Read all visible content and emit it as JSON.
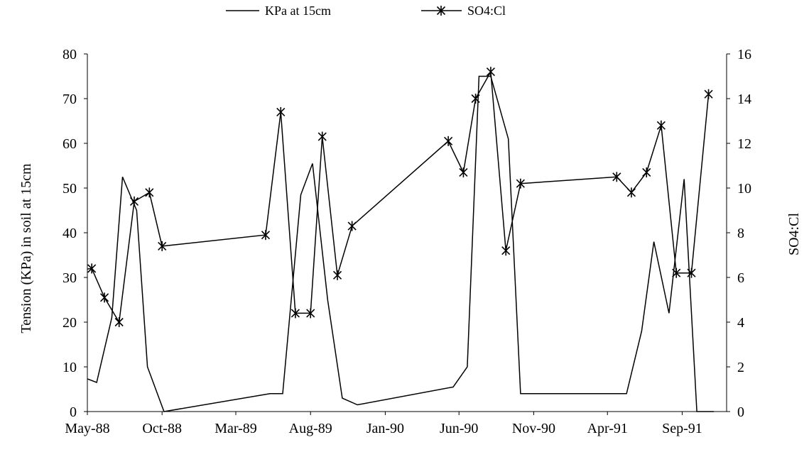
{
  "chart_data": {
    "type": "line",
    "title": "",
    "x_axis": {
      "type": "date",
      "range": [
        "1988-05-01",
        "1991-12-01"
      ],
      "tick_labels": [
        "May-88",
        "Oct-88",
        "Mar-89",
        "Aug-89",
        "Jan-90",
        "Jun-90",
        "Nov-90",
        "Apr-91",
        "Sep-91"
      ],
      "tick_dates": [
        "1988-05-01",
        "1988-10-01",
        "1989-03-01",
        "1989-08-01",
        "1990-01-01",
        "1990-06-01",
        "1990-11-01",
        "1991-04-01",
        "1991-09-01"
      ]
    },
    "y_left": {
      "label": "Tension (KPa) in soil at 15cm",
      "range": [
        0,
        80
      ],
      "ticks": [
        "0",
        "10",
        "20",
        "30",
        "40",
        "50",
        "60",
        "70",
        "80"
      ]
    },
    "y_right": {
      "label": "SO4:Cl",
      "range": [
        0,
        16
      ],
      "ticks": [
        "0",
        "2",
        "4",
        "6",
        "8",
        "10",
        "12",
        "14",
        "16"
      ]
    },
    "legend_position": "top",
    "grid": false,
    "series": [
      {
        "name": "KPa at 15cm",
        "axis": "left",
        "marker": "none",
        "color": "#000000",
        "points": [
          {
            "x": "1988-04-15",
            "y": 8
          },
          {
            "x": "1988-05-20",
            "y": 6.5
          },
          {
            "x": "1988-06-20",
            "y": 21
          },
          {
            "x": "1988-07-12",
            "y": 52.5
          },
          {
            "x": "1988-08-10",
            "y": 45
          },
          {
            "x": "1988-09-01",
            "y": 10
          },
          {
            "x": "1988-10-05",
            "y": 0
          },
          {
            "x": "1989-05-10",
            "y": 4
          },
          {
            "x": "1989-06-05",
            "y": 4
          },
          {
            "x": "1989-07-12",
            "y": 48.5
          },
          {
            "x": "1989-08-05",
            "y": 55.5
          },
          {
            "x": "1989-09-05",
            "y": 25
          },
          {
            "x": "1989-10-05",
            "y": 3
          },
          {
            "x": "1989-11-05",
            "y": 1.5
          },
          {
            "x": "1990-05-20",
            "y": 5.5
          },
          {
            "x": "1990-06-18",
            "y": 10
          },
          {
            "x": "1990-07-12",
            "y": 75
          },
          {
            "x": "1990-08-05",
            "y": 75
          },
          {
            "x": "1990-09-10",
            "y": 61
          },
          {
            "x": "1990-10-05",
            "y": 4
          },
          {
            "x": "1991-05-10",
            "y": 4
          },
          {
            "x": "1991-06-10",
            "y": 18
          },
          {
            "x": "1991-07-05",
            "y": 38
          },
          {
            "x": "1991-08-05",
            "y": 22
          },
          {
            "x": "1991-09-05",
            "y": 52
          },
          {
            "x": "1991-10-01",
            "y": 0
          },
          {
            "x": "1991-11-05",
            "y": 0
          }
        ]
      },
      {
        "name": "SO4:Cl",
        "axis": "right",
        "marker": "asterisk",
        "color": "#000000",
        "points": [
          {
            "x": "1988-04-01",
            "y": 6.3
          },
          {
            "x": "1988-05-10",
            "y": 6.4
          },
          {
            "x": "1988-06-05",
            "y": 5.1
          },
          {
            "x": "1988-07-05",
            "y": 4.0
          },
          {
            "x": "1988-08-05",
            "y": 9.4
          },
          {
            "x": "1988-09-05",
            "y": 9.8
          },
          {
            "x": "1988-10-01",
            "y": 7.4
          },
          {
            "x": "1989-05-01",
            "y": 7.9
          },
          {
            "x": "1989-06-01",
            "y": 13.4
          },
          {
            "x": "1989-07-01",
            "y": 4.4
          },
          {
            "x": "1989-08-01",
            "y": 4.4
          },
          {
            "x": "1989-08-25",
            "y": 12.3
          },
          {
            "x": "1989-09-25",
            "y": 6.1
          },
          {
            "x": "1989-10-25",
            "y": 8.3
          },
          {
            "x": "1990-05-10",
            "y": 12.1
          },
          {
            "x": "1990-06-10",
            "y": 10.7
          },
          {
            "x": "1990-07-05",
            "y": 14.0
          },
          {
            "x": "1990-08-05",
            "y": 15.2
          },
          {
            "x": "1990-09-05",
            "y": 7.2
          },
          {
            "x": "1990-10-05",
            "y": 10.2
          },
          {
            "x": "1991-04-20",
            "y": 10.5
          },
          {
            "x": "1991-05-20",
            "y": 9.8
          },
          {
            "x": "1991-06-20",
            "y": 10.7
          },
          {
            "x": "1991-07-20",
            "y": 12.8
          },
          {
            "x": "1991-08-20",
            "y": 6.2
          },
          {
            "x": "1991-09-20",
            "y": 6.2
          },
          {
            "x": "1991-10-25",
            "y": 14.2
          }
        ]
      }
    ]
  }
}
